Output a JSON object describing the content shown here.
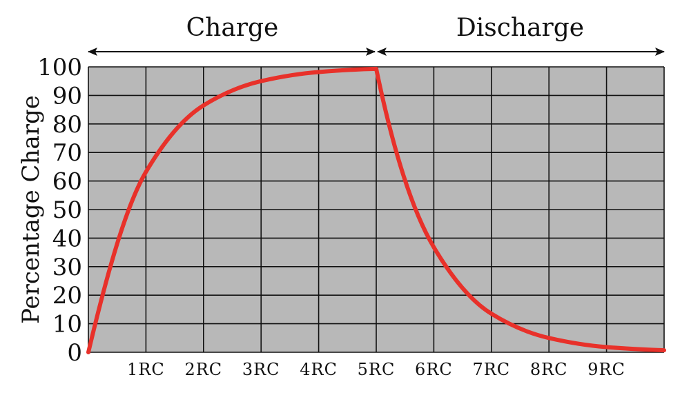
{
  "chart_data": {
    "type": "line",
    "title": "",
    "ylabel": "Percentage Charge",
    "xlabel": "",
    "phases": [
      {
        "label": "Charge",
        "from": 0,
        "to": 5
      },
      {
        "label": "Discharge",
        "from": 5,
        "to": 10
      }
    ],
    "x_ticks": [
      "1RC",
      "2RC",
      "3RC",
      "4RC",
      "5RC",
      "6RC",
      "7RC",
      "8RC",
      "9RC"
    ],
    "y_ticks": [
      "0",
      "10",
      "20",
      "30",
      "40",
      "50",
      "60",
      "70",
      "80",
      "90",
      "100"
    ],
    "xlim": [
      0,
      10
    ],
    "ylim": [
      0,
      100
    ],
    "grid": true,
    "series": [
      {
        "color": "#e8312a",
        "x": [
          0,
          1,
          2,
          3,
          4,
          5,
          6,
          7,
          8,
          9,
          10
        ],
        "y": [
          0,
          63.2,
          86.5,
          95.0,
          98.2,
          99.3,
          36.8,
          13.5,
          5.0,
          1.8,
          0.7
        ]
      }
    ],
    "colors": {
      "plot_background": "#b8b8b8",
      "grid": "#111111",
      "curve": "#e8312a"
    }
  }
}
